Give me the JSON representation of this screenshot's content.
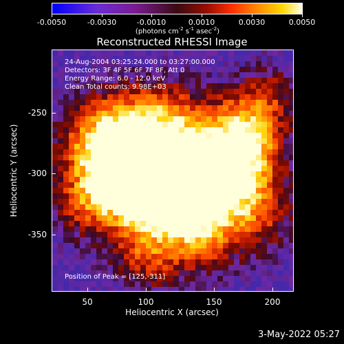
{
  "colorbar": {
    "ticks": [
      "-0.0050",
      "-0.0030",
      "-0.0010",
      "0.0010",
      "0.0030",
      "0.0050"
    ],
    "units_text": "(photons cm",
    "units_exp1": "-2",
    "units_mid1": " s",
    "units_exp2": "-1",
    "units_mid2": " asec",
    "units_exp3": "-2",
    "units_end": ")"
  },
  "title": "Reconstructed RHESSI Image",
  "info": {
    "line1": "24-Aug-2004 03:25:24.000 to 03:27:00.000",
    "line2": "Detectors: 3F 4F 5F 6F 7F 8F, Att 0",
    "line3": "Energy Range: 6.0 - 12.0 keV",
    "line4": "Clean     Total counts: 9.98E+03",
    "peak": "Position of Peak = [125,-311]"
  },
  "x_axis": {
    "label": "Heliocentric X (arcsec)",
    "ticks": [
      "50",
      "100",
      "150",
      "200"
    ]
  },
  "y_axis": {
    "label": "Heliocentric Y (arcsec)",
    "ticks": [
      "-250",
      "-300",
      "-350"
    ]
  },
  "timestamp": "3-May-2022 05:27"
}
